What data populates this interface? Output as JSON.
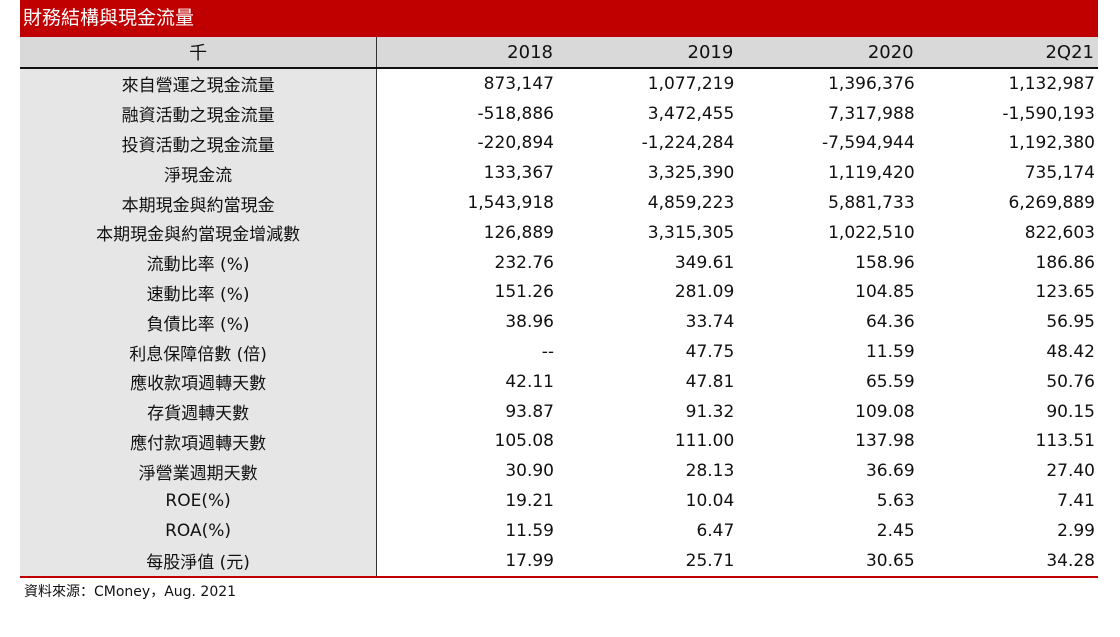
{
  "title": "財務結構與現金流量",
  "header": {
    "unit": "千",
    "columns": [
      "2018",
      "2019",
      "2020",
      "2Q21"
    ]
  },
  "rows": [
    {
      "label": "來自營運之現金流量",
      "values": [
        "873,147",
        "1,077,219",
        "1,396,376",
        "1,132,987"
      ]
    },
    {
      "label": "融資活動之現金流量",
      "values": [
        "-518,886",
        "3,472,455",
        "7,317,988",
        "-1,590,193"
      ]
    },
    {
      "label": "投資活動之現金流量",
      "values": [
        "-220,894",
        "-1,224,284",
        "-7,594,944",
        "1,192,380"
      ]
    },
    {
      "label": "淨現金流",
      "values": [
        "133,367",
        "3,325,390",
        "1,119,420",
        "735,174"
      ]
    },
    {
      "label": "本期現金與約當現金",
      "values": [
        "1,543,918",
        "4,859,223",
        "5,881,733",
        "6,269,889"
      ]
    },
    {
      "label": "本期現金與約當現金增減數",
      "values": [
        "126,889",
        "3,315,305",
        "1,022,510",
        "822,603"
      ]
    },
    {
      "label": "流動比率 (%)",
      "values": [
        "232.76",
        "349.61",
        "158.96",
        "186.86"
      ]
    },
    {
      "label": "速動比率 (%)",
      "values": [
        "151.26",
        "281.09",
        "104.85",
        "123.65"
      ]
    },
    {
      "label": "負債比率 (%)",
      "values": [
        "38.96",
        "33.74",
        "64.36",
        "56.95"
      ]
    },
    {
      "label": "利息保障倍數 (倍)",
      "values": [
        "--",
        "47.75",
        "11.59",
        "48.42"
      ]
    },
    {
      "label": "應收款項週轉天數",
      "values": [
        "42.11",
        "47.81",
        "65.59",
        "50.76"
      ]
    },
    {
      "label": "存貨週轉天數",
      "values": [
        "93.87",
        "91.32",
        "109.08",
        "90.15"
      ]
    },
    {
      "label": "應付款項週轉天數",
      "values": [
        "105.08",
        "111.00",
        "137.98",
        "113.51"
      ]
    },
    {
      "label": "淨營業週期天數",
      "values": [
        "30.90",
        "28.13",
        "36.69",
        "27.40"
      ]
    },
    {
      "label": "ROE(%)",
      "values": [
        "19.21",
        "10.04",
        "5.63",
        "7.41"
      ]
    },
    {
      "label": "ROA(%)",
      "values": [
        "11.59",
        "6.47",
        "2.45",
        "2.99"
      ]
    },
    {
      "label": "每股淨值 (元)",
      "values": [
        "17.99",
        "25.71",
        "30.65",
        "34.28"
      ]
    }
  ],
  "source": "資料來源：CMoney，Aug. 2021",
  "colors": {
    "title_bar": "#c00000",
    "header_bg": "#d9d9d9",
    "label_bg": "#e7e6e6"
  }
}
